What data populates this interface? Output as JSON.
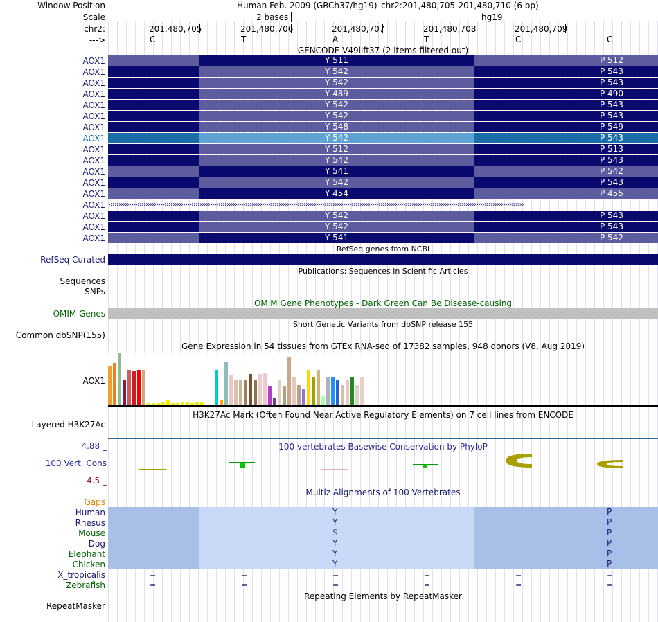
{
  "header": {
    "window_position_label": "Window Position",
    "assembly": "Human Feb. 2009 (GRCh37/hg19)",
    "position": "chr2:201,480,705-201,480,710 (6 bp)",
    "scale_label": "Scale",
    "scale_value": "2 bases",
    "scale_db": "hg19",
    "chrom_label": "chr2:",
    "strand_label": "--->",
    "coords": [
      "201,480,705",
      "201,480,706",
      "201,480,707",
      "201,480,708",
      "201,480,709"
    ],
    "bases": [
      "C",
      "T",
      "A",
      "T",
      "C",
      "C"
    ]
  },
  "gencode": {
    "title": "GENCODE V49lift37 (2 items filtered out)",
    "label": "AOX1",
    "colors": {
      "dark": "#0a0a6e",
      "light": "#5c5c9e",
      "highlight_dark": "#1a6ea8",
      "highlight_light": "#5fa3d4"
    },
    "rows": [
      {
        "y": "Y 511",
        "p": "P 512",
        "pattern": "light-dark-dark"
      },
      {
        "y": "Y 542",
        "p": "P 543",
        "pattern": "dark-light-dark"
      },
      {
        "y": "Y 542",
        "p": "P 543",
        "pattern": "dark-light-dark"
      },
      {
        "y": "Y 489",
        "p": "P 490",
        "pattern": "dark-light-dark"
      },
      {
        "y": "Y 542",
        "p": "P 543",
        "pattern": "dark-light-dark"
      },
      {
        "y": "Y 542",
        "p": "P 543",
        "pattern": "dark-light-dark"
      },
      {
        "y": "Y 548",
        "p": "P 549",
        "pattern": "dark-light-dark"
      },
      {
        "y": "Y 542",
        "p": "P 543",
        "pattern": "highlight"
      },
      {
        "y": "Y 512",
        "p": "P 513",
        "pattern": "dark-light-dark"
      },
      {
        "y": "Y 542",
        "p": "P 543",
        "pattern": "dark-light-dark"
      },
      {
        "y": "Y 541",
        "p": "P 542",
        "pattern": "light-dark-light"
      },
      {
        "y": "Y 542",
        "p": "P 543",
        "pattern": "dark-light-dark"
      },
      {
        "y": "Y 454",
        "p": "P 455",
        "pattern": "light-dark-light"
      },
      {
        "y": "",
        "p": "",
        "pattern": "intron"
      },
      {
        "y": "Y 542",
        "p": "P 543",
        "pattern": "dark-light-dark"
      },
      {
        "y": "Y 542",
        "p": "P 543",
        "pattern": "dark-light-dark"
      },
      {
        "y": "Y 541",
        "p": "P 542",
        "pattern": "light-dark-light"
      }
    ]
  },
  "refseq": {
    "title": "RefSeq genes from NCBI",
    "label": "RefSeq Curated",
    "color": "#0a0a6e"
  },
  "publications": {
    "title": "Publications: Sequences in Scientific Articles",
    "label1": "Sequences",
    "label2": "SNPs"
  },
  "omim": {
    "title": "OMIM Gene Phenotypes - Dark Green Can Be Disease-causing",
    "label": "OMIM Genes",
    "color": "#006400",
    "bar_color": "#c0c0c0"
  },
  "dbsnp": {
    "title": "Short Genetic Variants from dbSNP release 155",
    "label": "Common dbSNP(155)"
  },
  "gtex": {
    "title": "Gene Expression in 54 tissues from GTEx RNA-seq of 17382 samples, 948 donors (V8, Aug 2019)",
    "label": "AOX1",
    "bars": [
      {
        "h": 58,
        "c": "#f0a030"
      },
      {
        "h": 62,
        "c": "#f07f20"
      },
      {
        "h": 76,
        "c": "#8fbc8f"
      },
      {
        "h": 38,
        "c": "#8b1a4a"
      },
      {
        "h": 52,
        "c": "#cd5c5c"
      },
      {
        "h": 50,
        "c": "#d21e1e"
      },
      {
        "h": 52,
        "c": "#ff0000"
      },
      {
        "h": 52,
        "c": "#c8a888"
      },
      {
        "h": 4,
        "c": "#eeee00"
      },
      {
        "h": 4,
        "c": "#eeee00"
      },
      {
        "h": 4,
        "c": "#eeee00"
      },
      {
        "h": 5,
        "c": "#eeee00"
      },
      {
        "h": 9,
        "c": "#eeee00"
      },
      {
        "h": 4,
        "c": "#eeee00"
      },
      {
        "h": 4,
        "c": "#eeee00"
      },
      {
        "h": 5,
        "c": "#eeee00"
      },
      {
        "h": 5,
        "c": "#eeee00"
      },
      {
        "h": 4,
        "c": "#eeee00"
      },
      {
        "h": 6,
        "c": "#eeee00"
      },
      {
        "h": 5,
        "c": "#eeee00"
      },
      {
        "h": 2,
        "c": "#eeee00"
      },
      {
        "h": 0,
        "c": "#ffffff"
      },
      {
        "h": 52,
        "c": "#00cdcd"
      },
      {
        "h": 8,
        "c": "#ffaa00"
      },
      {
        "h": 64,
        "c": "#8fbcbc"
      },
      {
        "h": 44,
        "c": "#e8c8c8"
      },
      {
        "h": 38,
        "c": "#e0c0a8"
      },
      {
        "h": 38,
        "c": "#c8b8a0"
      },
      {
        "h": 38,
        "c": "#a08060"
      },
      {
        "h": 46,
        "c": "#7a5230"
      },
      {
        "h": 38,
        "c": "#8b7355"
      },
      {
        "h": 46,
        "c": "#e8d0c8"
      },
      {
        "h": 48,
        "c": "#f0c8d0"
      },
      {
        "h": 28,
        "c": "#b040c0"
      },
      {
        "h": 12,
        "c": "#7a3a8a"
      },
      {
        "h": 38,
        "c": "#e0d0c0"
      },
      {
        "h": 28,
        "c": "#b0a080"
      },
      {
        "h": 70,
        "c": "#c8a888"
      },
      {
        "h": 42,
        "c": "#e8c8b8"
      },
      {
        "h": 30,
        "c": "#b8a090"
      },
      {
        "h": 24,
        "c": "#9370db"
      },
      {
        "h": 52,
        "c": "#ffd700"
      },
      {
        "h": 42,
        "c": "#a0a000"
      },
      {
        "h": 52,
        "c": "#c8b880"
      },
      {
        "h": 14,
        "c": "#aaffaa"
      },
      {
        "h": 42,
        "c": "#b0b0c0"
      },
      {
        "h": 42,
        "c": "#1e90ff"
      },
      {
        "h": 38,
        "c": "#3060d0"
      },
      {
        "h": 30,
        "c": "#d8c0a0"
      },
      {
        "h": 38,
        "c": "#e8c8c0"
      },
      {
        "h": 42,
        "c": "#228b22"
      },
      {
        "h": 30,
        "c": "#d8d8c0"
      },
      {
        "h": 42,
        "c": "#e8d0c8"
      },
      {
        "h": 2,
        "c": "#cc33cc"
      }
    ]
  },
  "h3k27ac": {
    "title": "H3K27Ac Mark (Often Found Near Active Regulatory Elements) on 7 cell lines from ENCODE",
    "label": "Layered H3K27Ac"
  },
  "phylop": {
    "title": "100 vertebrates Basewise Conservation by PhyloP",
    "label": "100 Vert. Cons",
    "ymax": "4.88 _",
    "ymin": "-4.5 _",
    "title_color": "#2a2a9a",
    "logo_color": "#a8a000"
  },
  "multiz": {
    "title": "Multiz Alignments of 100 Vertebrates",
    "gaps_label": "Gaps",
    "species": [
      {
        "name": "Human",
        "color": "#191970",
        "y": "Y",
        "p": "P",
        "kind": "aligned"
      },
      {
        "name": "Rhesus",
        "color": "#191970",
        "y": "Y",
        "p": "P",
        "kind": "aligned"
      },
      {
        "name": "Mouse",
        "color": "#006400",
        "y": "S",
        "p": "P",
        "kind": "aligned"
      },
      {
        "name": "Dog",
        "color": "#191970",
        "y": "Y",
        "p": "P",
        "kind": "aligned"
      },
      {
        "name": "Elephant",
        "color": "#006400",
        "y": "Y",
        "p": "P",
        "kind": "aligned"
      },
      {
        "name": "Chicken",
        "color": "#006400",
        "y": "Y",
        "p": "P",
        "kind": "aligned"
      },
      {
        "name": "X_tropicalis",
        "color": "#191970",
        "y": "=",
        "p": "=",
        "kind": "equal"
      },
      {
        "name": "Zebrafish",
        "color": "#006400",
        "y": "=",
        "p": "=",
        "kind": "equal"
      }
    ]
  },
  "repeatmasker": {
    "title": "Repeating Elements by RepeatMasker",
    "label": "RepeatMasker"
  }
}
